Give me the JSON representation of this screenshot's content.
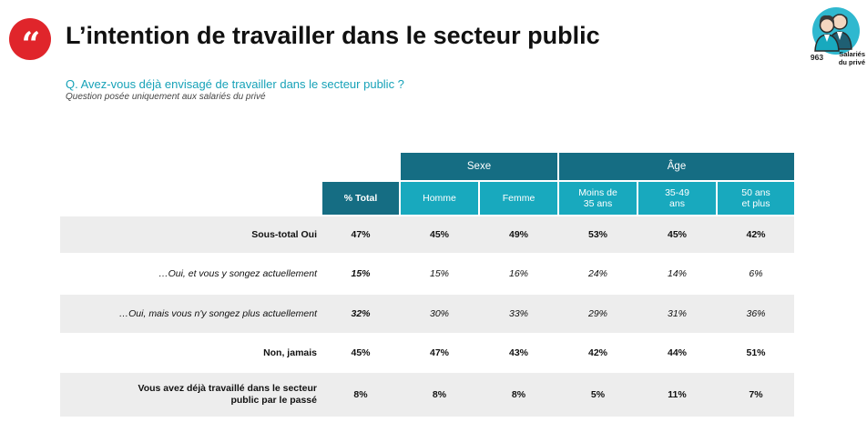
{
  "header": {
    "quote_glyph": "“",
    "title": "L’intention de travailler dans le secteur public",
    "badge": {
      "count": "963",
      "label_line1": "Salariés",
      "label_line2": "du privé",
      "icon": "people-icon"
    }
  },
  "question": "Q. Avez-vous déjà envisagé de travailler dans le secteur public ?",
  "subnote": "Question posée uniquement aux salariés du privé",
  "table": {
    "groups": [
      {
        "label": "Sexe"
      },
      {
        "label": "Âge"
      }
    ],
    "columns": [
      {
        "label": "% Total"
      },
      {
        "label": "Homme"
      },
      {
        "label": "Femme"
      },
      {
        "label": "Moins de 35 ans",
        "line1": "Moins de",
        "line2": "35 ans"
      },
      {
        "label": "35-49 ans",
        "line1": "35-49",
        "line2": "ans"
      },
      {
        "label": "50 ans et plus",
        "line1": "50 ans",
        "line2": "et plus"
      }
    ],
    "rows": [
      {
        "label": "Sous-total Oui",
        "values": [
          "47%",
          "45%",
          "49%",
          "53%",
          "45%",
          "42%"
        ]
      },
      {
        "label": "…Oui, et vous y songez actuellement",
        "values": [
          "15%",
          "15%",
          "16%",
          "24%",
          "14%",
          "6%"
        ]
      },
      {
        "label": "…Oui, mais vous n'y songez plus actuellement",
        "values": [
          "32%",
          "30%",
          "33%",
          "29%",
          "31%",
          "36%"
        ]
      },
      {
        "label": "Non, jamais",
        "values": [
          "45%",
          "47%",
          "43%",
          "42%",
          "44%",
          "51%"
        ]
      },
      {
        "label_line1": "Vous avez déjà travaillé dans le secteur",
        "label_line2": "public par le passé",
        "values": [
          "8%",
          "8%",
          "8%",
          "5%",
          "11%",
          "7%"
        ]
      }
    ]
  },
  "colors": {
    "accent_red": "#e0252b",
    "dark_teal": "#156d83",
    "teal": "#18a9be",
    "question_teal": "#17a2b8",
    "row_shade": "#ededed"
  }
}
